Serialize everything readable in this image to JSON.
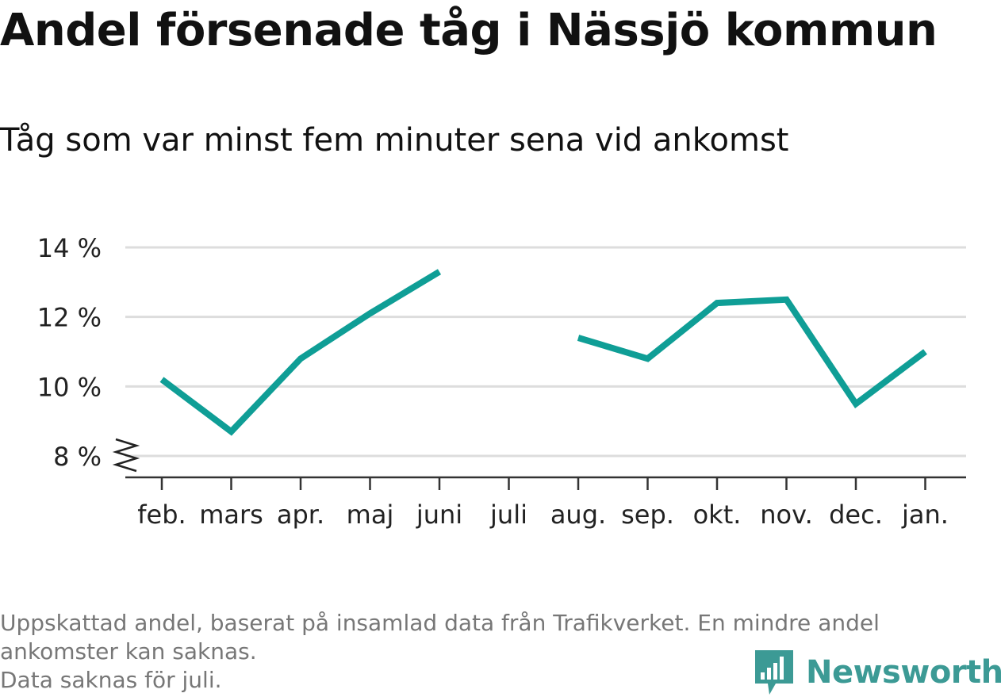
{
  "chart_data": {
    "type": "line",
    "title": "Andel försenade tåg i Nässjö kommun",
    "subtitle": "Tåg som var minst fem minuter sena vid ankomst",
    "categories": [
      "feb.",
      "mars",
      "apr.",
      "maj",
      "juni",
      "juli",
      "aug.",
      "sep.",
      "okt.",
      "nov.",
      "dec.",
      "jan."
    ],
    "series": [
      {
        "values": [
          10.2,
          8.7,
          10.8,
          12.1,
          13.3,
          null,
          11.4,
          10.8,
          12.4,
          12.5,
          9.5,
          11.0
        ]
      }
    ],
    "ylim": [
      8,
      14
    ],
    "yticks": [
      {
        "value": 8,
        "label": "8 %"
      },
      {
        "value": 10,
        "label": "10 %"
      },
      {
        "value": 12,
        "label": "12 %"
      },
      {
        "value": 14,
        "label": "14 %"
      }
    ],
    "y_axis_break": true,
    "grid": true,
    "line_color": "#0f9e96",
    "grid_color": "#dddddd"
  },
  "footnote": {
    "lines": [
      "Uppskattad andel, baserat på insamlad data från Trafikverket. En mindre andel",
      "ankomster kan saknas.",
      "Data saknas för juli."
    ]
  },
  "logo": {
    "text": "Newsworthy",
    "icon": "bar-chart-speech-bubble-icon",
    "color": "#3c9a95"
  }
}
